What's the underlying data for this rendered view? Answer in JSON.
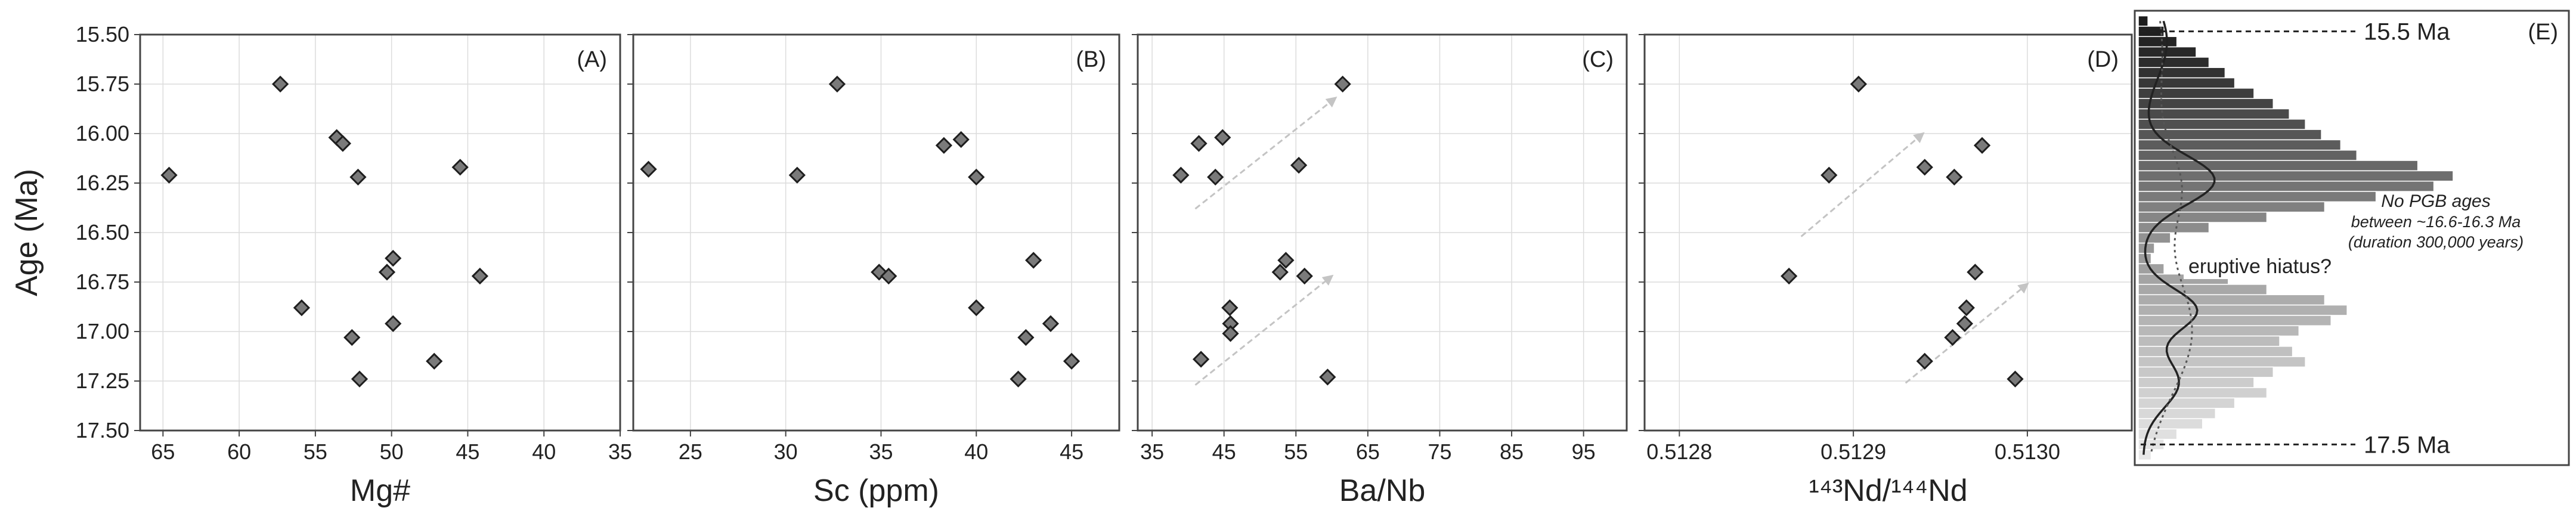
{
  "chart_data": [
    {
      "type": "scatter",
      "panel_letter": "(A)",
      "xlabel": "Mg#",
      "ylabel": "Age (Ma)",
      "xlim": [
        66.5,
        35
      ],
      "ylim": [
        15.5,
        17.5
      ],
      "x_ticks": [
        65,
        60,
        55,
        50,
        45,
        40,
        35
      ],
      "y_ticks": [
        15.5,
        15.75,
        16.0,
        16.25,
        16.5,
        16.75,
        17.0,
        17.25,
        17.5
      ],
      "y_tick_labels": [
        "15.50",
        "15.75",
        "16.00",
        "16.25",
        "16.50",
        "16.75",
        "17.00",
        "17.25",
        "17.50"
      ],
      "grid": true,
      "points": [
        {
          "x": 64.6,
          "y": 16.21
        },
        {
          "x": 57.3,
          "y": 15.75
        },
        {
          "x": 53.6,
          "y": 16.02
        },
        {
          "x": 53.2,
          "y": 16.05
        },
        {
          "x": 52.2,
          "y": 16.22
        },
        {
          "x": 45.5,
          "y": 16.17
        },
        {
          "x": 49.9,
          "y": 16.63
        },
        {
          "x": 50.3,
          "y": 16.7
        },
        {
          "x": 44.2,
          "y": 16.72
        },
        {
          "x": 55.9,
          "y": 16.88
        },
        {
          "x": 49.9,
          "y": 16.96
        },
        {
          "x": 52.6,
          "y": 17.03
        },
        {
          "x": 47.2,
          "y": 17.15
        },
        {
          "x": 52.1,
          "y": 17.24
        }
      ]
    },
    {
      "type": "scatter",
      "panel_letter": "(B)",
      "xlabel": "Sc (ppm)",
      "ylabel": "",
      "xlim": [
        22,
        47.5
      ],
      "ylim": [
        15.5,
        17.5
      ],
      "x_ticks": [
        25,
        30,
        35,
        40,
        45
      ],
      "grid": true,
      "points": [
        {
          "x": 22.8,
          "y": 16.18
        },
        {
          "x": 32.7,
          "y": 15.75
        },
        {
          "x": 30.6,
          "y": 16.21
        },
        {
          "x": 38.3,
          "y": 16.06
        },
        {
          "x": 39.2,
          "y": 16.03
        },
        {
          "x": 40.0,
          "y": 16.22
        },
        {
          "x": 43.0,
          "y": 16.64
        },
        {
          "x": 34.9,
          "y": 16.7
        },
        {
          "x": 35.4,
          "y": 16.72
        },
        {
          "x": 40.0,
          "y": 16.88
        },
        {
          "x": 43.9,
          "y": 16.96
        },
        {
          "x": 42.6,
          "y": 17.03
        },
        {
          "x": 45.0,
          "y": 17.15
        },
        {
          "x": 42.2,
          "y": 17.24
        }
      ]
    },
    {
      "type": "scatter",
      "panel_letter": "(C)",
      "xlabel": "Ba/Nb",
      "ylabel": "",
      "xlim": [
        33,
        101
      ],
      "ylim": [
        15.5,
        17.5
      ],
      "x_ticks": [
        35,
        45,
        55,
        65,
        75,
        85,
        95
      ],
      "grid": true,
      "points": [
        {
          "x": 61.5,
          "y": 15.75
        },
        {
          "x": 41.5,
          "y": 16.05
        },
        {
          "x": 44.8,
          "y": 16.02
        },
        {
          "x": 39.0,
          "y": 16.21
        },
        {
          "x": 43.8,
          "y": 16.22
        },
        {
          "x": 55.4,
          "y": 16.16
        },
        {
          "x": 53.6,
          "y": 16.64
        },
        {
          "x": 52.8,
          "y": 16.7
        },
        {
          "x": 56.2,
          "y": 16.72
        },
        {
          "x": 45.8,
          "y": 16.88
        },
        {
          "x": 45.9,
          "y": 16.96
        },
        {
          "x": 45.9,
          "y": 17.01
        },
        {
          "x": 41.8,
          "y": 17.14
        },
        {
          "x": 59.4,
          "y": 17.23
        }
      ],
      "trend_arrows": [
        {
          "from": [
            41.0,
            16.38
          ],
          "to": [
            60.5,
            15.82
          ]
        },
        {
          "from": [
            41.0,
            17.27
          ],
          "to": [
            60.0,
            16.72
          ]
        }
      ]
    },
    {
      "type": "scatter",
      "panel_letter": "(D)",
      "xlabel": "¹⁴³Nd/¹⁴⁴Nd",
      "ylabel": "",
      "xlim": [
        0.51278,
        0.51306
      ],
      "ylim": [
        15.5,
        17.5
      ],
      "x_ticks": [
        0.5128,
        0.5129,
        0.513
      ],
      "x_tick_labels": [
        "0.5128",
        "0.5129",
        "0.5130"
      ],
      "grid": true,
      "points": [
        {
          "x": 0.512903,
          "y": 15.75
        },
        {
          "x": 0.512886,
          "y": 16.21
        },
        {
          "x": 0.512941,
          "y": 16.17
        },
        {
          "x": 0.512958,
          "y": 16.22
        },
        {
          "x": 0.512974,
          "y": 16.06
        },
        {
          "x": 0.512863,
          "y": 16.72
        },
        {
          "x": 0.51297,
          "y": 16.7
        },
        {
          "x": 0.512965,
          "y": 16.88
        },
        {
          "x": 0.512964,
          "y": 16.96
        },
        {
          "x": 0.512957,
          "y": 17.03
        },
        {
          "x": 0.512941,
          "y": 17.15
        },
        {
          "x": 0.512993,
          "y": 17.24
        }
      ],
      "trend_arrows": [
        {
          "from": [
            0.51287,
            16.52
          ],
          "to": [
            0.51294,
            16.0
          ]
        },
        {
          "from": [
            0.51293,
            17.26
          ],
          "to": [
            0.513,
            16.76
          ]
        }
      ]
    },
    {
      "type": "histogram",
      "panel_letter": "(E)",
      "orientation": "horizontal",
      "ylim": [
        15.4,
        17.6
      ],
      "bin_width_ma": 0.05,
      "bins": [
        {
          "age": 15.45,
          "count": 3,
          "shade": "#1c1c1c"
        },
        {
          "age": 15.5,
          "count": 8,
          "shade": "#202020"
        },
        {
          "age": 15.55,
          "count": 12,
          "shade": "#242424"
        },
        {
          "age": 15.6,
          "count": 18,
          "shade": "#282828"
        },
        {
          "age": 15.65,
          "count": 22,
          "shade": "#2c2c2c"
        },
        {
          "age": 15.7,
          "count": 27,
          "shade": "#323232"
        },
        {
          "age": 15.75,
          "count": 30,
          "shade": "#383838"
        },
        {
          "age": 15.8,
          "count": 36,
          "shade": "#3e3e3e"
        },
        {
          "age": 15.85,
          "count": 42,
          "shade": "#444444"
        },
        {
          "age": 15.9,
          "count": 47,
          "shade": "#4a4a4a"
        },
        {
          "age": 15.95,
          "count": 52,
          "shade": "#505050"
        },
        {
          "age": 16.0,
          "count": 57,
          "shade": "#565656"
        },
        {
          "age": 16.05,
          "count": 63,
          "shade": "#5c5c5c"
        },
        {
          "age": 16.1,
          "count": 68,
          "shade": "#626262"
        },
        {
          "age": 16.15,
          "count": 87,
          "shade": "#686868"
        },
        {
          "age": 16.2,
          "count": 98,
          "shade": "#6e6e6e"
        },
        {
          "age": 16.25,
          "count": 92,
          "shade": "#747474"
        },
        {
          "age": 16.3,
          "count": 74,
          "shade": "#7a7a7a"
        },
        {
          "age": 16.35,
          "count": 58,
          "shade": "#808080"
        },
        {
          "age": 16.4,
          "count": 40,
          "shade": "#868686"
        },
        {
          "age": 16.45,
          "count": 22,
          "shade": "#8c8c8c"
        },
        {
          "age": 16.5,
          "count": 10,
          "shade": "#929292"
        },
        {
          "age": 16.55,
          "count": 5,
          "shade": "#989898"
        },
        {
          "age": 16.6,
          "count": 4,
          "shade": "#9c9c9c"
        },
        {
          "age": 16.65,
          "count": 8,
          "shade": "#a0a0a0"
        },
        {
          "age": 16.7,
          "count": 28,
          "shade": "#a4a4a4"
        },
        {
          "age": 16.75,
          "count": 40,
          "shade": "#a8a8a8"
        },
        {
          "age": 16.8,
          "count": 58,
          "shade": "#acacac"
        },
        {
          "age": 16.85,
          "count": 65,
          "shade": "#b0b0b0"
        },
        {
          "age": 16.9,
          "count": 60,
          "shade": "#b4b4b4"
        },
        {
          "age": 16.95,
          "count": 50,
          "shade": "#b8b8b8"
        },
        {
          "age": 17.0,
          "count": 44,
          "shade": "#bcbcbc"
        },
        {
          "age": 17.05,
          "count": 48,
          "shade": "#c0c0c0"
        },
        {
          "age": 17.1,
          "count": 52,
          "shade": "#c4c4c4"
        },
        {
          "age": 17.15,
          "count": 42,
          "shade": "#c8c8c8"
        },
        {
          "age": 17.2,
          "count": 36,
          "shade": "#cccccc"
        },
        {
          "age": 17.25,
          "count": 40,
          "shade": "#d0d0d0"
        },
        {
          "age": 17.3,
          "count": 30,
          "shade": "#d4d4d4"
        },
        {
          "age": 17.35,
          "count": 24,
          "shade": "#d8d8d8"
        },
        {
          "age": 17.4,
          "count": 20,
          "shade": "#dcdcdc"
        },
        {
          "age": 17.45,
          "count": 12,
          "shade": "#e0e0e0"
        },
        {
          "age": 17.5,
          "count": 8,
          "shade": "#e4e4e4"
        },
        {
          "age": 17.55,
          "count": 4,
          "shade": "#e8e8e8"
        }
      ],
      "x_max_count": 100,
      "reference_lines": [
        {
          "age": 15.5,
          "label": "15.5 Ma"
        },
        {
          "age": 17.5,
          "label": "17.5 Ma"
        }
      ],
      "annotations": {
        "hiatus_label": "eruptive hiatus?",
        "note_lines": [
          "No PGB ages",
          "between ~16.6-16.3 Ma",
          "(duration 300,000 years)"
        ]
      }
    }
  ]
}
